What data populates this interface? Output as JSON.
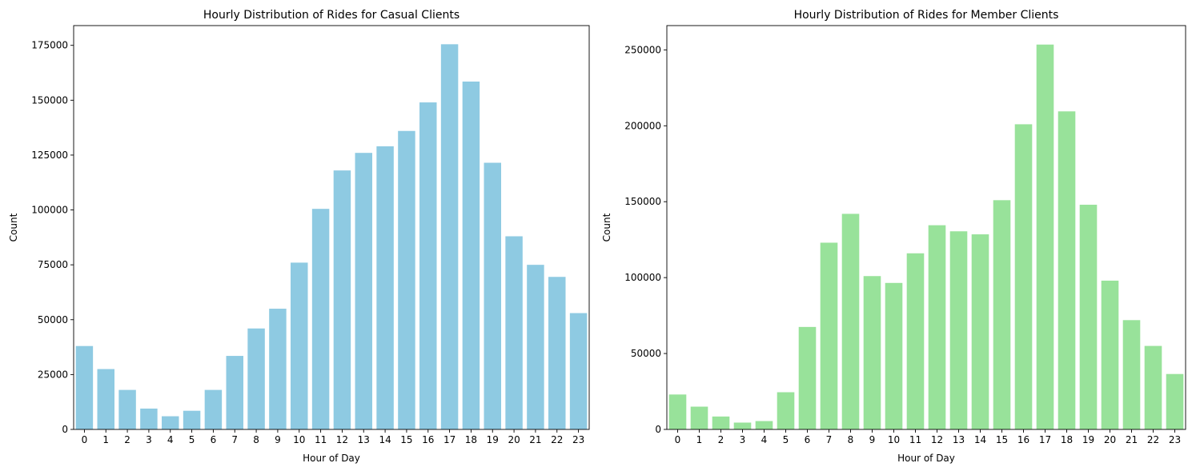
{
  "chart_data": [
    {
      "type": "bar",
      "title": "Hourly Distribution of Rides for Casual Clients",
      "xlabel": "Hour of Day",
      "ylabel": "Count",
      "color": "#8ecae2",
      "categories": [
        "0",
        "1",
        "2",
        "3",
        "4",
        "5",
        "6",
        "7",
        "8",
        "9",
        "10",
        "11",
        "12",
        "13",
        "14",
        "15",
        "16",
        "17",
        "18",
        "19",
        "20",
        "21",
        "22",
        "23"
      ],
      "values": [
        38000,
        27500,
        18000,
        9500,
        6000,
        8500,
        18000,
        33500,
        46000,
        55000,
        76000,
        100500,
        118000,
        126000,
        129000,
        136000,
        149000,
        175500,
        158500,
        121500,
        88000,
        75000,
        69500,
        53000
      ],
      "ylim": [
        0,
        184000
      ],
      "yticks": [
        0,
        25000,
        50000,
        75000,
        100000,
        125000,
        150000,
        175000
      ],
      "grid": false
    },
    {
      "type": "bar",
      "title": "Hourly Distribution of Rides for Member Clients",
      "xlabel": "Hour of Day",
      "ylabel": "Count",
      "color": "#98e29a",
      "categories": [
        "0",
        "1",
        "2",
        "3",
        "4",
        "5",
        "6",
        "7",
        "8",
        "9",
        "10",
        "11",
        "12",
        "13",
        "14",
        "15",
        "16",
        "17",
        "18",
        "19",
        "20",
        "21",
        "22",
        "23"
      ],
      "values": [
        23000,
        15000,
        8500,
        4500,
        5500,
        24500,
        67500,
        123000,
        142000,
        101000,
        96500,
        116000,
        134500,
        130500,
        128500,
        151000,
        201000,
        253500,
        209500,
        148000,
        98000,
        72000,
        55000,
        36500
      ],
      "ylim": [
        0,
        266000
      ],
      "yticks": [
        0,
        50000,
        100000,
        150000,
        200000,
        250000
      ],
      "grid": false
    }
  ]
}
